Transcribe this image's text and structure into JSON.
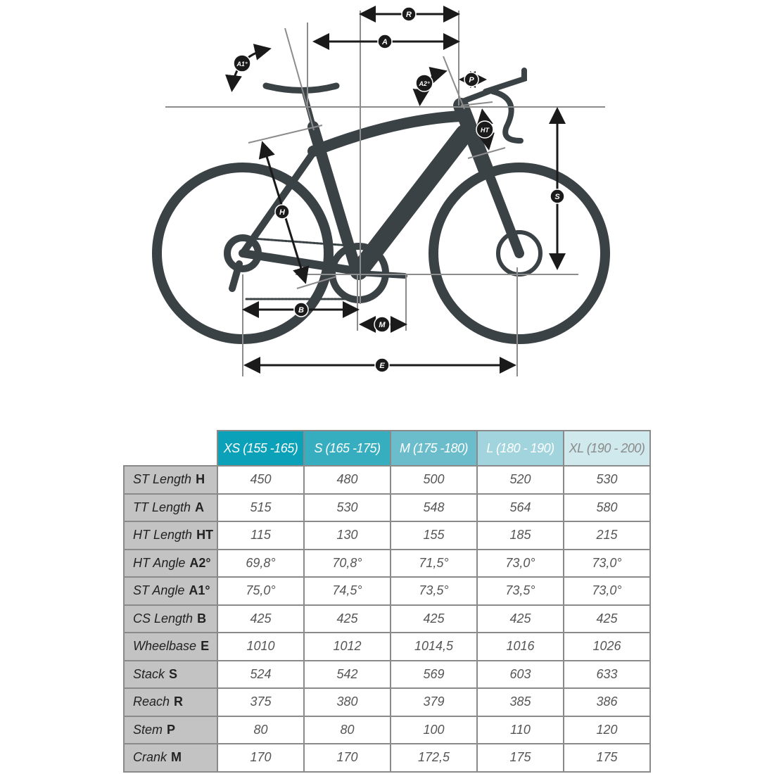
{
  "diagram": {
    "labels": {
      "R": "R",
      "A": "A",
      "A1": "A1°",
      "A2": "A2°",
      "P": "P",
      "HT": "HT",
      "S": "S",
      "H": "H",
      "B": "B",
      "M": "M",
      "E": "E"
    },
    "colors": {
      "frame": "#3b4246",
      "lines": "#8c8c8c",
      "label_bg": "#1a1a1a"
    }
  },
  "table": {
    "sizes": [
      {
        "label": "XS (155 -165)",
        "color": "#0ba1b8",
        "text_color": "#ffffff"
      },
      {
        "label": "S (165 -175)",
        "color": "#37aebf",
        "text_color": "#ffffff"
      },
      {
        "label": "M (175 -180)",
        "color": "#6bbdcb",
        "text_color": "#ffffff"
      },
      {
        "label": "L (180 - 190)",
        "color": "#a2d4dd",
        "text_color": "#ffffff"
      },
      {
        "label": "XL (190 - 200)",
        "color": "#d0e9ed",
        "text_color": "#8a8a8a"
      }
    ],
    "rows": [
      {
        "name": "ST Length",
        "code": "H",
        "values": [
          "450",
          "480",
          "500",
          "520",
          "530"
        ]
      },
      {
        "name": "TT Length",
        "code": "A",
        "values": [
          "515",
          "530",
          "548",
          "564",
          "580"
        ]
      },
      {
        "name": "HT Length",
        "code": "HT",
        "values": [
          "115",
          "130",
          "155",
          "185",
          "215"
        ]
      },
      {
        "name": "HT Angle",
        "code": "A2°",
        "values": [
          "69,8°",
          "70,8°",
          "71,5°",
          "73,0°",
          "73,0°"
        ]
      },
      {
        "name": "ST Angle",
        "code": "A1°",
        "values": [
          "75,0°",
          "74,5°",
          "73,5°",
          "73,5°",
          "73,0°"
        ]
      },
      {
        "name": "CS Length",
        "code": "B",
        "values": [
          "425",
          "425",
          "425",
          "425",
          "425"
        ]
      },
      {
        "name": "Wheelbase",
        "code": "E",
        "values": [
          "1010",
          "1012",
          "1014,5",
          "1016",
          "1026"
        ]
      },
      {
        "name": "Stack",
        "code": "S",
        "values": [
          "524",
          "542",
          "569",
          "603",
          "633"
        ]
      },
      {
        "name": "Reach",
        "code": "R",
        "values": [
          "375",
          "380",
          "379",
          "385",
          "386"
        ]
      },
      {
        "name": "Stem",
        "code": "P",
        "values": [
          "80",
          "80",
          "100",
          "110",
          "120"
        ]
      },
      {
        "name": "Crank",
        "code": "M",
        "values": [
          "170",
          "170",
          "172,5",
          "175",
          "175"
        ]
      }
    ]
  }
}
